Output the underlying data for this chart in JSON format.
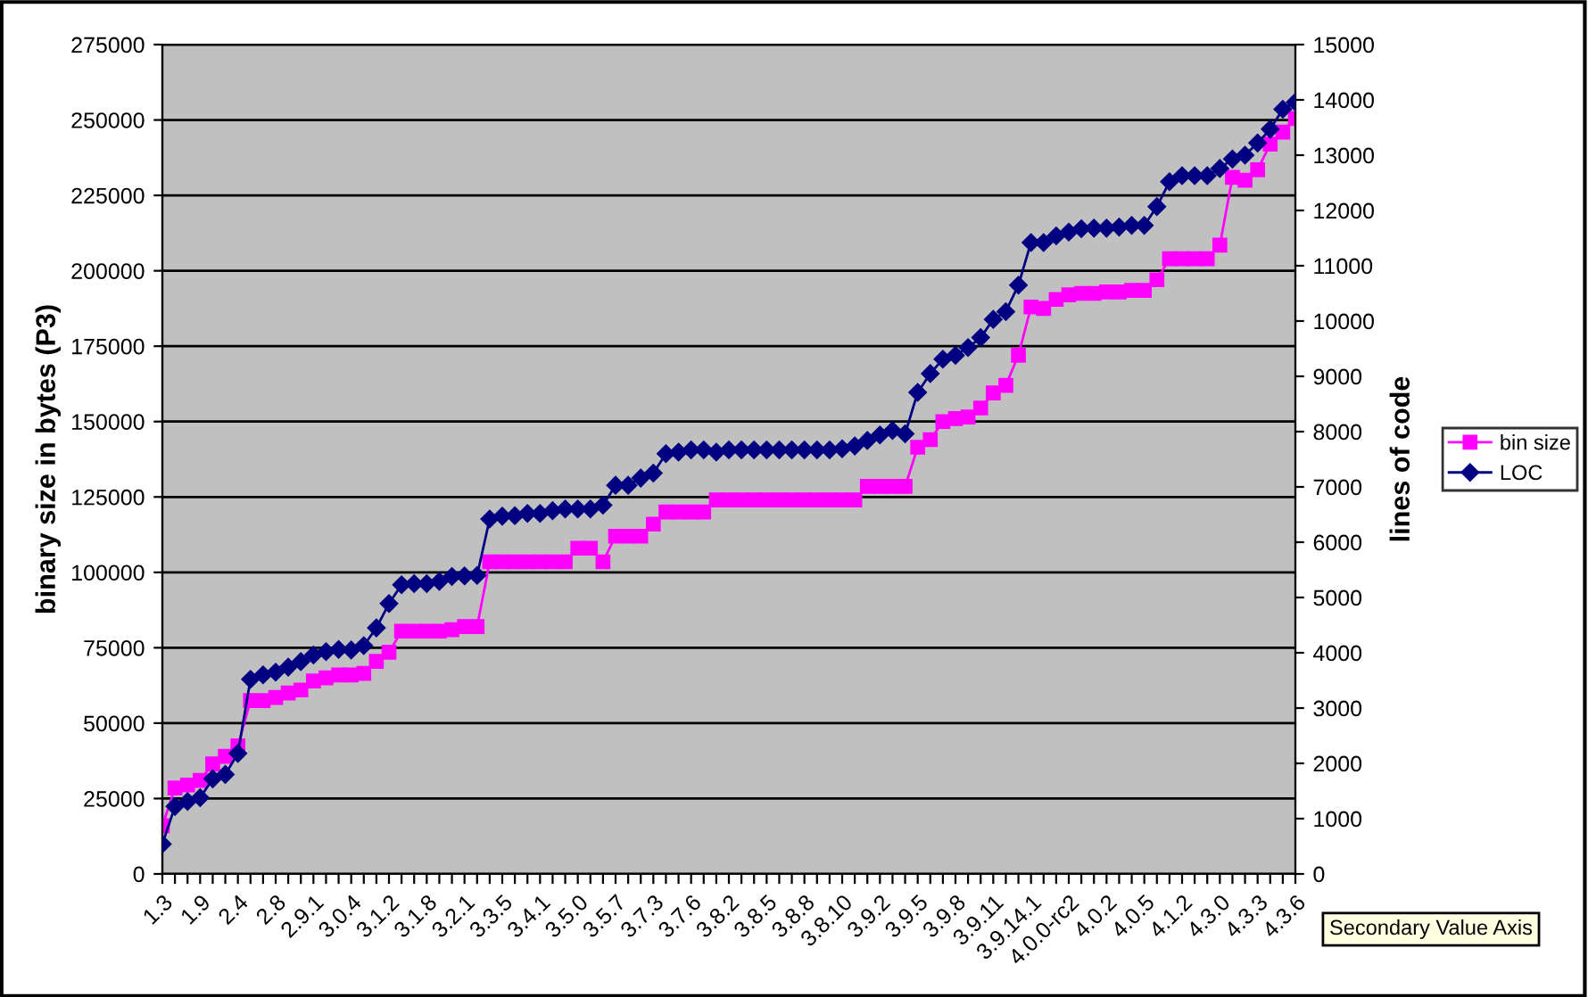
{
  "chart_data": {
    "type": "line",
    "ylabel": "binary size in bytes (P3)",
    "y2label": "lines of code",
    "categories": [
      "1.3",
      null,
      null,
      "1.9",
      null,
      null,
      "2.4",
      null,
      null,
      "2.8",
      null,
      null,
      "2.9.1",
      null,
      null,
      "3.0.4",
      null,
      null,
      "3.1.2",
      null,
      null,
      "3.1.8",
      null,
      null,
      "3.2.1",
      null,
      null,
      "3.3.5",
      null,
      null,
      "3.4.1",
      null,
      null,
      "3.5.0",
      null,
      null,
      "3.5.7",
      null,
      null,
      "3.7.3",
      null,
      null,
      "3.7.6",
      null,
      null,
      "3.8.2",
      null,
      null,
      "3.8.5",
      null,
      null,
      "3.8.8",
      null,
      null,
      "3.8.10",
      null,
      null,
      "3.9.2",
      null,
      null,
      "3.9.5",
      null,
      null,
      "3.9.8",
      null,
      null,
      "3.9.11",
      null,
      null,
      "3.9.14.1",
      null,
      null,
      "4.0.0-rc2",
      null,
      null,
      "4.0.2",
      null,
      null,
      "4.0.5",
      null,
      null,
      "4.1.2",
      null,
      null,
      "4.3.0",
      null,
      null,
      "4.3.3",
      null,
      null,
      "4.3.6"
    ],
    "series": [
      {
        "name": "bin size",
        "color": "#ff00ff",
        "marker": "square",
        "values": [
          16000,
          28500,
          29500,
          31000,
          36500,
          39000,
          42500,
          57500,
          57500,
          58500,
          60000,
          61000,
          64000,
          65000,
          66000,
          66000,
          66500,
          70500,
          73500,
          80500,
          80500,
          80500,
          80500,
          81000,
          82000,
          82000,
          103500,
          103500,
          103500,
          103500,
          103500,
          103500,
          103500,
          108000,
          108000,
          103500,
          112000,
          112000,
          112000,
          116000,
          120000,
          120000,
          120000,
          120000,
          124000,
          124000,
          124000,
          124000,
          124000,
          124000,
          124000,
          124000,
          124000,
          124000,
          124000,
          124000,
          128500,
          128500,
          128500,
          128500,
          141500,
          144000,
          150000,
          151000,
          151500,
          154500,
          159500,
          162000,
          172000,
          188000,
          187500,
          190500,
          192000,
          192500,
          192500,
          193000,
          193000,
          193500,
          193500,
          197000,
          204000,
          204000,
          204000,
          204000,
          208500,
          231000,
          230000,
          233500,
          242000,
          246000,
          250500
        ]
      },
      {
        "name": "LOC",
        "color": "#000080",
        "marker": "diamond",
        "axis": "y2",
        "values": [
          540,
          1220,
          1310,
          1380,
          1720,
          1800,
          2180,
          3520,
          3600,
          3650,
          3740,
          3840,
          3960,
          4020,
          4060,
          4050,
          4130,
          4450,
          4890,
          5230,
          5250,
          5250,
          5290,
          5380,
          5390,
          5400,
          6420,
          6470,
          6480,
          6520,
          6520,
          6570,
          6600,
          6600,
          6600,
          6670,
          7030,
          7030,
          7160,
          7250,
          7600,
          7630,
          7670,
          7670,
          7630,
          7670,
          7670,
          7670,
          7670,
          7670,
          7670,
          7670,
          7670,
          7670,
          7690,
          7740,
          7840,
          7940,
          8020,
          7960,
          8710,
          9050,
          9310,
          9380,
          9520,
          9700,
          10030,
          10170,
          10650,
          11420,
          11420,
          11540,
          11610,
          11670,
          11680,
          11680,
          11700,
          11730,
          11730,
          12070,
          12520,
          12630,
          12630,
          12630,
          12760,
          12930,
          13000,
          13220,
          13470,
          13830,
          13960
        ]
      }
    ],
    "ylim": [
      0,
      275000
    ],
    "yticks": [
      0,
      25000,
      50000,
      75000,
      100000,
      125000,
      150000,
      175000,
      200000,
      225000,
      250000,
      275000
    ],
    "y2lim": [
      0,
      15000
    ],
    "y2ticks": [
      0,
      1000,
      2000,
      3000,
      4000,
      5000,
      6000,
      7000,
      8000,
      9000,
      10000,
      11000,
      12000,
      13000,
      14000,
      15000
    ],
    "grid": "y",
    "legend": "right",
    "line_style": "solid",
    "annotations": [
      "Secondary Value Axis"
    ]
  }
}
